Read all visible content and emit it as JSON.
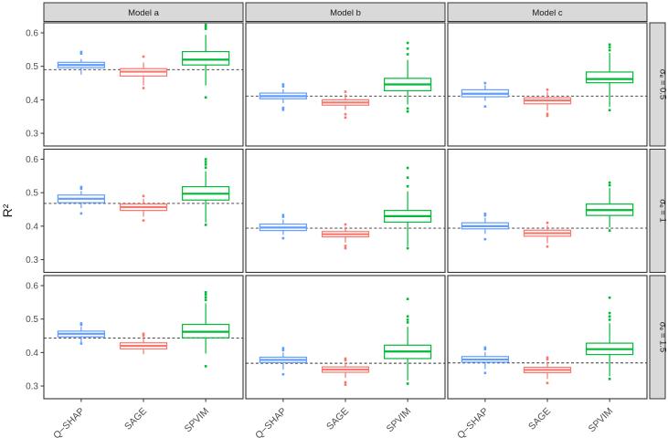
{
  "chart_data": {
    "type": "boxplot",
    "title": "",
    "ylabel": "R²",
    "xlabel": "",
    "legend": "none",
    "grid": "off",
    "x_categories": [
      "Q−SHAP",
      "SAGE",
      "SPVIM"
    ],
    "series_colors": {
      "qshap": "#619CFF",
      "sage": "#F8766D",
      "spvim": "#00BA38"
    },
    "ref_line_style": {
      "color": "#333333",
      "dash": "dashed"
    },
    "strip_bg": "#D9D9D9",
    "panel_border": "#333333",
    "axis_text_color": "#4D4D4D",
    "col_facets": [
      "Model a",
      "Model b",
      "Model c"
    ],
    "row_facets": [
      "σₑ = 0.5",
      "σₑ = 1",
      "σₑ = 1.5"
    ],
    "y_ticks": [
      0.3,
      0.4,
      0.5,
      0.6
    ],
    "ylim": [
      0.262,
      0.63
    ],
    "panels": [
      {
        "row": 0,
        "col": 0,
        "ref_line": 0.49,
        "boxes": [
          {
            "name": "Q−SHAP",
            "low": 0.475,
            "q1": 0.496,
            "median": 0.504,
            "q3": 0.512,
            "high": 0.522,
            "outliers": [
              0.538,
              0.543
            ]
          },
          {
            "name": "SAGE",
            "low": 0.443,
            "q1": 0.471,
            "median": 0.484,
            "q3": 0.493,
            "high": 0.511,
            "outliers": [
              0.529,
              0.435
            ]
          },
          {
            "name": "SPVIM",
            "low": 0.443,
            "q1": 0.504,
            "median": 0.52,
            "q3": 0.544,
            "high": 0.594,
            "outliers": [
              0.612,
              0.617,
              0.624,
              0.407
            ]
          }
        ]
      },
      {
        "row": 0,
        "col": 1,
        "ref_line": 0.411,
        "boxes": [
          {
            "name": "Q−SHAP",
            "low": 0.39,
            "q1": 0.403,
            "median": 0.411,
            "q3": 0.42,
            "high": 0.432,
            "outliers": [
              0.44,
              0.446,
              0.376,
              0.37
            ]
          },
          {
            "name": "SAGE",
            "low": 0.37,
            "q1": 0.384,
            "median": 0.392,
            "q3": 0.4,
            "high": 0.417,
            "outliers": [
              0.424,
              0.357,
              0.347
            ]
          },
          {
            "name": "SPVIM",
            "low": 0.386,
            "q1": 0.427,
            "median": 0.446,
            "q3": 0.464,
            "high": 0.519,
            "outliers": [
              0.536,
              0.553,
              0.57,
              0.374,
              0.365
            ]
          }
        ]
      },
      {
        "row": 0,
        "col": 2,
        "ref_line": 0.411,
        "boxes": [
          {
            "name": "Q−SHAP",
            "low": 0.397,
            "q1": 0.409,
            "median": 0.418,
            "q3": 0.43,
            "high": 0.444,
            "outliers": [
              0.45,
              0.38
            ]
          },
          {
            "name": "SAGE",
            "low": 0.368,
            "q1": 0.388,
            "median": 0.398,
            "q3": 0.406,
            "high": 0.424,
            "outliers": [
              0.43,
              0.358,
              0.352
            ]
          },
          {
            "name": "SPVIM",
            "low": 0.379,
            "q1": 0.451,
            "median": 0.462,
            "q3": 0.483,
            "high": 0.54,
            "outliers": [
              0.548,
              0.557,
              0.565,
              0.369
            ]
          }
        ]
      },
      {
        "row": 1,
        "col": 0,
        "ref_line": 0.468,
        "boxes": [
          {
            "name": "Q−SHAP",
            "low": 0.454,
            "q1": 0.47,
            "median": 0.482,
            "q3": 0.493,
            "high": 0.505,
            "outliers": [
              0.512,
              0.517,
              0.438
            ]
          },
          {
            "name": "SAGE",
            "low": 0.428,
            "q1": 0.447,
            "median": 0.457,
            "q3": 0.466,
            "high": 0.482,
            "outliers": [
              0.49,
              0.417
            ]
          },
          {
            "name": "SPVIM",
            "low": 0.411,
            "q1": 0.478,
            "median": 0.497,
            "q3": 0.518,
            "high": 0.564,
            "outliers": [
              0.575,
              0.584,
              0.592,
              0.6,
              0.404
            ]
          }
        ]
      },
      {
        "row": 1,
        "col": 1,
        "ref_line": 0.394,
        "boxes": [
          {
            "name": "Q−SHAP",
            "low": 0.374,
            "q1": 0.387,
            "median": 0.396,
            "q3": 0.406,
            "high": 0.42,
            "outliers": [
              0.428,
              0.433,
              0.364
            ]
          },
          {
            "name": "SAGE",
            "low": 0.351,
            "q1": 0.368,
            "median": 0.376,
            "q3": 0.384,
            "high": 0.398,
            "outliers": [
              0.405,
              0.341,
              0.334
            ]
          },
          {
            "name": "SPVIM",
            "low": 0.339,
            "q1": 0.412,
            "median": 0.43,
            "q3": 0.447,
            "high": 0.504,
            "outliers": [
              0.519,
              0.545,
              0.574,
              0.334
            ]
          }
        ]
      },
      {
        "row": 1,
        "col": 2,
        "ref_line": 0.394,
        "boxes": [
          {
            "name": "Q−SHAP",
            "low": 0.377,
            "q1": 0.392,
            "median": 0.4,
            "q3": 0.41,
            "high": 0.425,
            "outliers": [
              0.432,
              0.437,
              0.361
            ]
          },
          {
            "name": "SAGE",
            "low": 0.349,
            "q1": 0.37,
            "median": 0.379,
            "q3": 0.388,
            "high": 0.402,
            "outliers": [
              0.41,
              0.339
            ]
          },
          {
            "name": "SPVIM",
            "low": 0.397,
            "q1": 0.432,
            "median": 0.448,
            "q3": 0.466,
            "high": 0.514,
            "outliers": [
              0.522,
              0.53,
              0.387
            ]
          }
        ]
      },
      {
        "row": 2,
        "col": 0,
        "ref_line": 0.443,
        "boxes": [
          {
            "name": "Q−SHAP",
            "low": 0.431,
            "q1": 0.447,
            "median": 0.456,
            "q3": 0.464,
            "high": 0.477,
            "outliers": [
              0.483,
              0.487,
              0.427
            ]
          },
          {
            "name": "SAGE",
            "low": 0.395,
            "q1": 0.411,
            "median": 0.42,
            "q3": 0.429,
            "high": 0.443,
            "outliers": [
              0.45,
              0.456
            ]
          },
          {
            "name": "SPVIM",
            "low": 0.397,
            "q1": 0.444,
            "median": 0.462,
            "q3": 0.484,
            "high": 0.547,
            "outliers": [
              0.557,
              0.565,
              0.573,
              0.58,
              0.359
            ]
          }
        ]
      },
      {
        "row": 2,
        "col": 1,
        "ref_line": 0.368,
        "boxes": [
          {
            "name": "Q−SHAP",
            "low": 0.349,
            "q1": 0.37,
            "median": 0.378,
            "q3": 0.386,
            "high": 0.4,
            "outliers": [
              0.407,
              0.413,
              0.335
            ]
          },
          {
            "name": "SAGE",
            "low": 0.324,
            "q1": 0.341,
            "median": 0.349,
            "q3": 0.357,
            "high": 0.37,
            "outliers": [
              0.377,
              0.382,
              0.311,
              0.304
            ]
          },
          {
            "name": "SPVIM",
            "low": 0.317,
            "q1": 0.382,
            "median": 0.403,
            "q3": 0.422,
            "high": 0.477,
            "outliers": [
              0.49,
              0.498,
              0.508,
              0.56,
              0.307
            ]
          }
        ]
      },
      {
        "row": 2,
        "col": 2,
        "ref_line": 0.369,
        "boxes": [
          {
            "name": "Q−SHAP",
            "low": 0.351,
            "q1": 0.371,
            "median": 0.379,
            "q3": 0.388,
            "high": 0.402,
            "outliers": [
              0.41,
              0.415,
              0.339
            ]
          },
          {
            "name": "SAGE",
            "low": 0.321,
            "q1": 0.34,
            "median": 0.348,
            "q3": 0.356,
            "high": 0.372,
            "outliers": [
              0.38,
              0.385,
              0.309
            ]
          },
          {
            "name": "SPVIM",
            "low": 0.329,
            "q1": 0.394,
            "median": 0.41,
            "q3": 0.428,
            "high": 0.488,
            "outliers": [
              0.498,
              0.508,
              0.518,
              0.564,
              0.321
            ]
          }
        ]
      }
    ]
  }
}
